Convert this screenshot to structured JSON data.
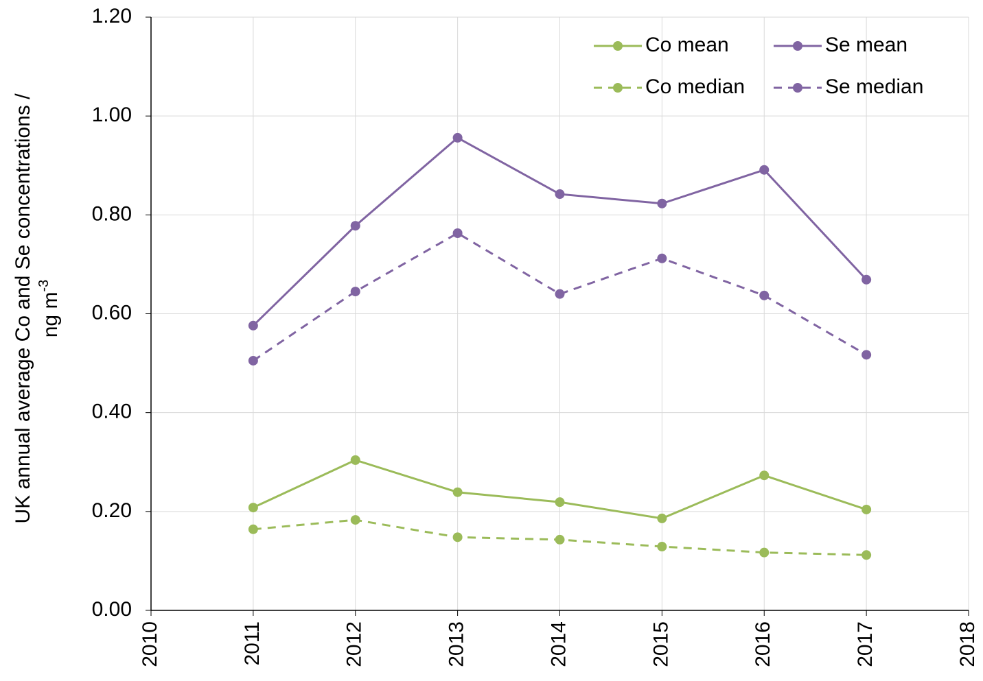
{
  "chart_data": {
    "type": "line",
    "y_label": {
      "line1": "UK annual average Co and Se concentrations /",
      "line2": "ng m",
      "superscript": "-3"
    },
    "x": [
      2011,
      2012,
      2013,
      2014,
      2015,
      2016,
      2017
    ],
    "xlim": [
      2010,
      2018
    ],
    "xticks": [
      2010,
      2011,
      2012,
      2013,
      2014,
      2015,
      2016,
      2017,
      2018
    ],
    "ylim": [
      0,
      1.2
    ],
    "yticks": [
      {
        "value": 0,
        "label": "0.00"
      },
      {
        "value": 0.2,
        "label": "0.20"
      },
      {
        "value": 0.4,
        "label": "0.40"
      },
      {
        "value": 0.6,
        "label": "0.60"
      },
      {
        "value": 0.8,
        "label": "0.80"
      },
      {
        "value": 1.0,
        "label": "1.00"
      },
      {
        "value": 1.2,
        "label": "1.20"
      }
    ],
    "grid": true,
    "legend": "top-right",
    "series": [
      {
        "name": "Co mean",
        "color": "#9bbb59",
        "dashed": false,
        "values": [
          0.208,
          0.304,
          0.239,
          0.219,
          0.186,
          0.273,
          0.204
        ]
      },
      {
        "name": "Se mean",
        "color": "#8064a2",
        "dashed": false,
        "values": [
          0.576,
          0.778,
          0.956,
          0.842,
          0.823,
          0.891,
          0.669
        ]
      },
      {
        "name": "Co median",
        "color": "#9bbb59",
        "dashed": true,
        "values": [
          0.164,
          0.183,
          0.148,
          0.143,
          0.129,
          0.117,
          0.112
        ]
      },
      {
        "name": "Se median",
        "color": "#8064a2",
        "dashed": true,
        "values": [
          0.505,
          0.645,
          0.763,
          0.64,
          0.712,
          0.637,
          0.517
        ]
      }
    ]
  }
}
